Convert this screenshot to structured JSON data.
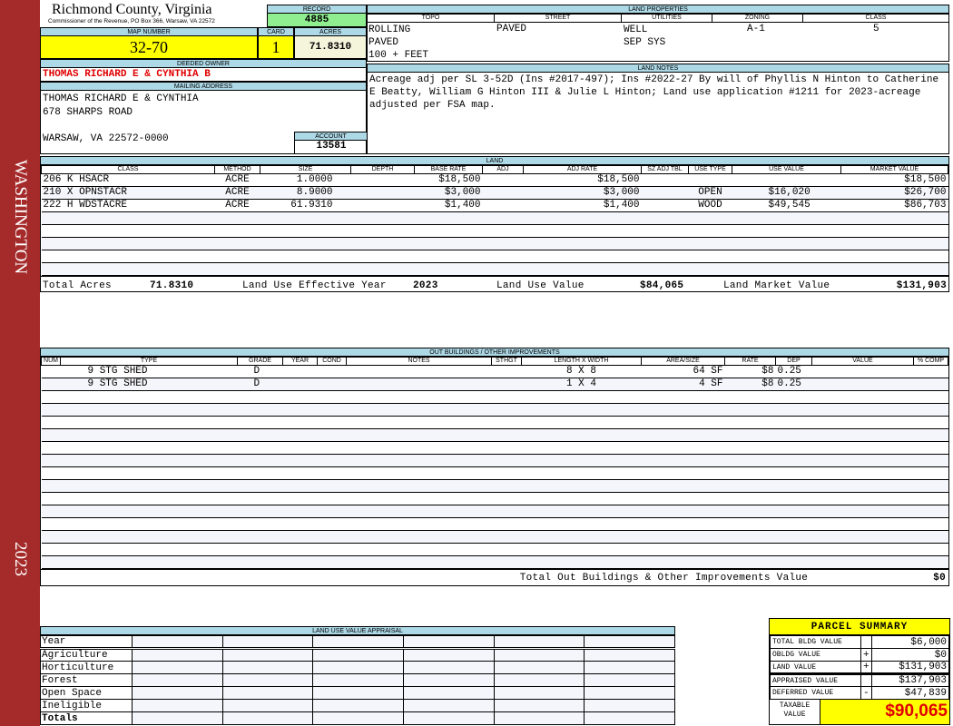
{
  "sidebar": {
    "locality": "WASHINGTON",
    "year": "2023"
  },
  "header": {
    "title": "Richmond County, Virginia",
    "subtitle": "Commissioner of the Revenue, PO Box 366, Warsaw, VA 22572"
  },
  "record": {
    "label": "RECORD",
    "value": "4885"
  },
  "parcel": {
    "map_label": "MAP NUMBER",
    "map": "32-70",
    "card_label": "CARD",
    "card": "1",
    "acres_label": "ACRES",
    "acres": "71.8310"
  },
  "owner": {
    "label": "DEEDED OWNER",
    "name": "THOMAS RICHARD E & CYNTHIA B"
  },
  "mailing": {
    "label": "MAILING ADDRESS",
    "line1": "THOMAS RICHARD E & CYNTHIA",
    "line2": "678 SHARPS ROAD",
    "line3": "WARSAW, VA 22572-0000"
  },
  "account": {
    "label": "ACCOUNT",
    "value": "13581"
  },
  "land_properties": {
    "label": "LAND PROPERTIES",
    "columns": [
      "TOPO",
      "STREET",
      "UTILITIES",
      "ZONING",
      "CLASS"
    ],
    "topo": [
      "ROLLING",
      "PAVED",
      "100 + FEET"
    ],
    "street": "PAVED",
    "utilities": [
      "WELL",
      "SEP SYS"
    ],
    "zoning": "A-1",
    "class": "5"
  },
  "land_notes": {
    "label": "LAND NOTES",
    "text": "Acreage adj per SL 3-52D (Ins #2017-497); Ins #2022-27 By will of Phyllis N Hinton to Catherine E Beatty, William G Hinton III & Julie L Hinton; Land use application #1211 for 2023-acreage adjusted per FSA map."
  },
  "land": {
    "label": "LAND",
    "columns": [
      "CLASS",
      "METHOD",
      "SIZE",
      "DEPTH",
      "BASE RATE",
      "ADJ",
      "ADJ RATE",
      "SZ ADJ TBL",
      "USE TYPE",
      "USE VALUE",
      "MARKET VALUE"
    ],
    "rows": [
      [
        "206 K HSACR",
        "ACRE",
        "1.0000",
        "",
        "$18,500",
        "",
        "$18,500",
        "",
        "",
        "",
        "$18,500"
      ],
      [
        "210 X OPNSTACR",
        "ACRE",
        "8.9000",
        "",
        "$3,000",
        "",
        "$3,000",
        "",
        "OPEN",
        "$16,020",
        "$26,700"
      ],
      [
        "222 H WDSTACRE",
        "ACRE",
        "61.9310",
        "",
        "$1,400",
        "",
        "$1,400",
        "",
        "WOOD",
        "$49,545",
        "$86,703"
      ]
    ],
    "totals": {
      "acres_label": "Total Acres",
      "acres": "71.8310",
      "year_label": "Land Use Effective Year",
      "year": "2023",
      "use_label": "Land Use Value",
      "use": "$84,065",
      "market_label": "Land Market Value",
      "market": "$131,903"
    }
  },
  "outbuildings": {
    "label": "OUT BUILDINGS / OTHER IMPROVEMENTS",
    "columns": [
      "NUM",
      "TYPE",
      "GRADE",
      "YEAR",
      "COND",
      "NOTES",
      "STHGT",
      "LENGTH X WIDTH",
      "AREA/SIZE",
      "RATE",
      "DEP",
      "VALUE",
      "% COMP"
    ],
    "rows": [
      [
        "",
        "9 STG SHED",
        "D",
        "",
        "",
        "",
        "",
        "8 X 8",
        "64 SF",
        "$8",
        "0.25",
        "",
        ""
      ],
      [
        "",
        "9 STG SHED",
        "D",
        "",
        "",
        "",
        "",
        "1 X 4",
        "4 SF",
        "$8",
        "0.25",
        "",
        ""
      ]
    ],
    "total_label": "Total Out Buildings & Other Improvements Value",
    "total": "$0"
  },
  "land_use_appraisal": {
    "label": "LAND USE VALUE APPRAISAL",
    "rows": [
      "Year",
      "Agriculture",
      "Horticulture",
      "Forest",
      "Open Space",
      "Ineligible",
      "Totals"
    ]
  },
  "summary": {
    "title": "PARCEL SUMMARY",
    "rows": [
      {
        "label": "TOTAL BLDG VALUE",
        "op": "",
        "value": "$6,000"
      },
      {
        "label": "OBLDG VALUE",
        "op": "+",
        "value": "$0"
      },
      {
        "label": "LAND VALUE",
        "op": "+",
        "value": "$131,903"
      },
      {
        "label": "APPRAISED VALUE",
        "op": "",
        "value": "$137,903"
      },
      {
        "label": "DEFERRED VALUE",
        "op": "-",
        "value": "$47,839"
      }
    ],
    "taxable_label": "TAXABLE VALUE",
    "taxable": "$90,065"
  },
  "colors": {
    "sidebar": "#a52a2a",
    "label_bg": "#add8e6",
    "record_bg": "#90ee90",
    "highlight": "#ffff00",
    "owner_text": "#e00000"
  }
}
